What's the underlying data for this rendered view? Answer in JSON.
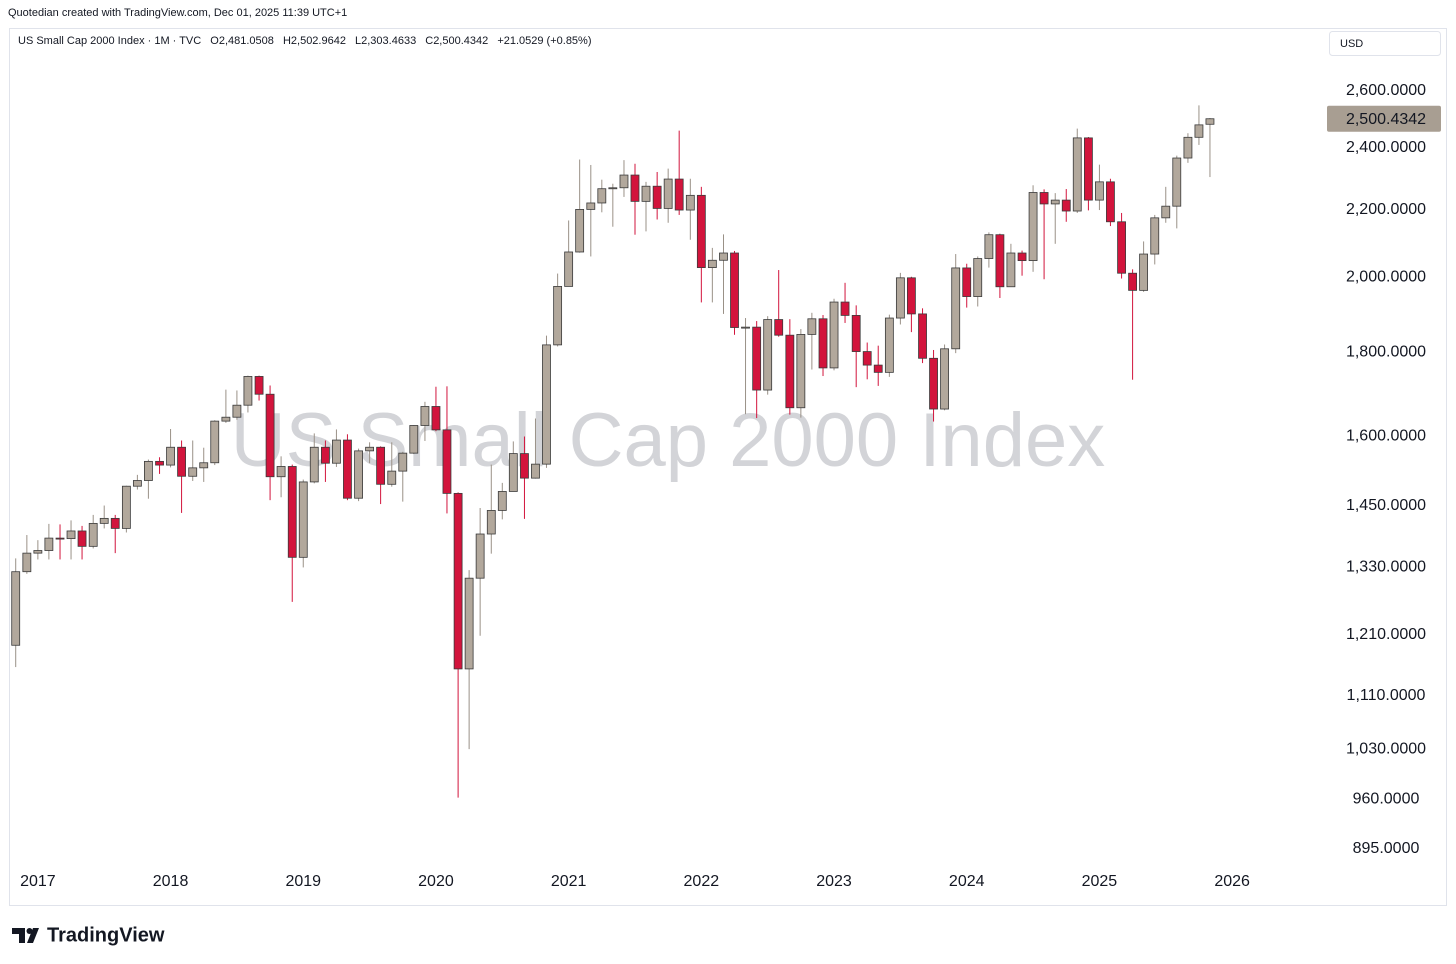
{
  "chart_data": {
    "type": "candlestick",
    "attribution": "Quotedian created with TradingView.com, Dec 01, 2025 11:39 UTC+1",
    "legend": "US Small Cap 2000 Index · 1M · TVC",
    "ohlc_labels": [
      "O2,481.0508",
      "H2,502.9642",
      "L2,303.4633",
      "C2,500.4342",
      "+21.0529 (+0.85%)"
    ],
    "watermark": "US Small Cap 2000 Index",
    "currency": "USD",
    "footer": "TradingView",
    "log_scale": true,
    "grid": false,
    "up_color": "#b2a89c",
    "down_color": "#d2143c",
    "last_price": {
      "value": 2500.4342,
      "label": "2,500.4342"
    },
    "xlim": [
      2016.79,
      2026.7
    ],
    "xticks": [
      2017,
      2018,
      2019,
      2020,
      2021,
      2022,
      2023,
      2024,
      2025,
      2026
    ],
    "ylim": [
      875,
      2853
    ],
    "yticks": [
      {
        "value": 2600,
        "label": "2,600.0000"
      },
      {
        "value": 2400,
        "label": "2,400.0000"
      },
      {
        "value": 2200,
        "label": "2,200.0000"
      },
      {
        "value": 2000,
        "label": "2,000.0000"
      },
      {
        "value": 1800,
        "label": "1,800.0000"
      },
      {
        "value": 1600,
        "label": "1,600.0000"
      },
      {
        "value": 1450,
        "label": "1,450.0000"
      },
      {
        "value": 1330,
        "label": "1,330.0000"
      },
      {
        "value": 1210,
        "label": "1,210.0000"
      },
      {
        "value": 1110,
        "label": "1,110.0000"
      },
      {
        "value": 1030,
        "label": "1,030.0000"
      },
      {
        "value": 960,
        "label": "960.0000"
      },
      {
        "value": 895,
        "label": "895.0000"
      }
    ],
    "x": [
      2016.833,
      2016.917,
      2017.0,
      2017.083,
      2017.167,
      2017.25,
      2017.333,
      2017.417,
      2017.5,
      2017.583,
      2017.667,
      2017.75,
      2017.833,
      2017.917,
      2018.0,
      2018.083,
      2018.167,
      2018.25,
      2018.333,
      2018.417,
      2018.5,
      2018.583,
      2018.667,
      2018.75,
      2018.833,
      2018.917,
      2019.0,
      2019.083,
      2019.167,
      2019.25,
      2019.333,
      2019.417,
      2019.5,
      2019.583,
      2019.667,
      2019.75,
      2019.833,
      2019.917,
      2020.0,
      2020.083,
      2020.167,
      2020.25,
      2020.333,
      2020.417,
      2020.5,
      2020.583,
      2020.667,
      2020.75,
      2020.833,
      2020.917,
      2021.0,
      2021.083,
      2021.167,
      2021.25,
      2021.333,
      2021.417,
      2021.5,
      2021.583,
      2021.667,
      2021.75,
      2021.833,
      2021.917,
      2022.0,
      2022.083,
      2022.167,
      2022.25,
      2022.333,
      2022.417,
      2022.5,
      2022.583,
      2022.667,
      2022.75,
      2022.833,
      2022.917,
      2023.0,
      2023.083,
      2023.167,
      2023.25,
      2023.333,
      2023.417,
      2023.5,
      2023.583,
      2023.667,
      2023.75,
      2023.833,
      2023.917,
      2024.0,
      2024.083,
      2024.167,
      2024.25,
      2024.333,
      2024.417,
      2024.5,
      2024.583,
      2024.667,
      2024.75,
      2024.833,
      2024.917,
      2025.0,
      2025.083,
      2025.167,
      2025.25,
      2025.333,
      2025.417,
      2025.5,
      2025.583,
      2025.667,
      2025.75,
      2025.833
    ],
    "open": [
      1192,
      1322,
      1357,
      1362,
      1386,
      1385,
      1400,
      1370,
      1415,
      1425,
      1405,
      1491,
      1503,
      1544,
      1536,
      1575,
      1512,
      1530,
      1541,
      1634,
      1643,
      1671,
      1740,
      1697,
      1511,
      1533,
      1349,
      1500,
      1575,
      1540,
      1591,
      1466,
      1567,
      1575,
      1495,
      1523,
      1562,
      1624,
      1668,
      1614,
      1476,
      1153,
      1310,
      1394,
      1441,
      1480,
      1561,
      1508,
      1538,
      1819,
      1975,
      2073,
      2201,
      2221,
      2266,
      2269,
      2310,
      2226,
      2274,
      2204,
      2297,
      2199,
      2245,
      2028,
      2049,
      2070,
      1864,
      1865,
      1707,
      1885,
      1844,
      1665,
      1846,
      1887,
      1761,
      1932,
      1896,
      1802,
      1768,
      1750,
      1889,
      1999,
      1900,
      1785,
      1662,
      1809,
      2027,
      1947,
      2054,
      2124,
      1974,
      2070,
      2048,
      2254,
      2218,
      2230,
      2196,
      2434,
      2230,
      2288,
      2163,
      2012,
      1964,
      2067,
      2175,
      2211,
      2366,
      2436,
      2481.0508
    ],
    "high": [
      1347,
      1392,
      1382,
      1414,
      1413,
      1421,
      1410,
      1432,
      1451,
      1432,
      1492,
      1515,
      1548,
      1553,
      1616,
      1590,
      1590,
      1574,
      1636,
      1708,
      1706,
      1742,
      1742,
      1718,
      1555,
      1537,
      1505,
      1606,
      1590,
      1615,
      1604,
      1572,
      1586,
      1577,
      1586,
      1565,
      1625,
      1679,
      1715,
      1716,
      1478,
      1325,
      1446,
      1537,
      1498,
      1588,
      1599,
      1640,
      1843,
      2011,
      2167,
      2361,
      2343,
      2295,
      2282,
      2359,
      2347,
      2288,
      2320,
      2331,
      2459,
      2298,
      2272,
      2085,
      2125,
      2076,
      1889,
      1881,
      1894,
      2021,
      1886,
      1860,
      1903,
      1897,
      1941,
      1985,
      1923,
      1825,
      1817,
      1898,
      2013,
      2002,
      1915,
      1806,
      1820,
      2067,
      2039,
      2060,
      2131,
      2127,
      2097,
      2077,
      2277,
      2264,
      2252,
      2265,
      2466,
      2437,
      2344,
      2298,
      2190,
      2023,
      2104,
      2184,
      2272,
      2374,
      2450,
      2548,
      2502.9642
    ],
    "low": [
      1156,
      1318,
      1345,
      1345,
      1345,
      1345,
      1345,
      1366,
      1405,
      1357,
      1397,
      1484,
      1465,
      1517,
      1531,
      1436,
      1502,
      1500,
      1536,
      1630,
      1637,
      1654,
      1682,
      1462,
      1468,
      1267,
      1330,
      1497,
      1500,
      1532,
      1462,
      1460,
      1540,
      1454,
      1490,
      1459,
      1560,
      1589,
      1611,
      1435,
      962,
      1030,
      1208,
      1356,
      1423,
      1480,
      1424,
      1507,
      1530,
      1815,
      1975,
      2071,
      2060,
      2192,
      2148,
      2240,
      2124,
      2134,
      2170,
      2160,
      2184,
      2109,
      1931,
      1931,
      1900,
      1845,
      1650,
      1641,
      1696,
      1840,
      1649,
      1642,
      1757,
      1741,
      1755,
      1876,
      1714,
      1733,
      1717,
      1739,
      1872,
      1852,
      1773,
      1633,
      1659,
      1798,
      1917,
      1920,
      2028,
      1943,
      1974,
      2005,
      2016,
      1995,
      2097,
      2163,
      2190,
      2198,
      2199,
      2150,
      1997,
      1732,
      1960,
      2037,
      2160,
      2143,
      2350,
      2410,
      2303.4633
    ],
    "close": [
      1322,
      1357,
      1362,
      1386,
      1385,
      1400,
      1370,
      1415,
      1425,
      1405,
      1491,
      1503,
      1544,
      1536,
      1575,
      1512,
      1530,
      1541,
      1634,
      1643,
      1671,
      1740,
      1697,
      1511,
      1533,
      1349,
      1500,
      1575,
      1540,
      1591,
      1466,
      1567,
      1575,
      1495,
      1523,
      1562,
      1624,
      1668,
      1614,
      1476,
      1153,
      1310,
      1394,
      1441,
      1480,
      1561,
      1508,
      1538,
      1819,
      1975,
      2073,
      2201,
      2221,
      2266,
      2269,
      2310,
      2226,
      2274,
      2204,
      2297,
      2199,
      2245,
      2028,
      2049,
      2070,
      1864,
      1865,
      1707,
      1885,
      1844,
      1665,
      1846,
      1887,
      1761,
      1932,
      1896,
      1802,
      1768,
      1750,
      1889,
      1999,
      1900,
      1785,
      1662,
      1809,
      2027,
      1947,
      2054,
      2124,
      1974,
      2070,
      2048,
      2254,
      2218,
      2230,
      2196,
      2434,
      2230,
      2288,
      2163,
      2012,
      1964,
      2067,
      2175,
      2211,
      2366,
      2436,
      2479,
      2500.4342
    ]
  }
}
